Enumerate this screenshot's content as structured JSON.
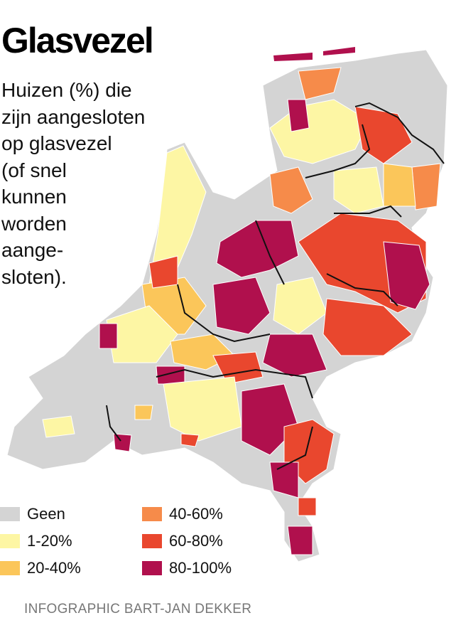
{
  "title": "Glasvezel",
  "subtitle_lines": [
    "Huizen (%) die",
    "zijn aangesloten",
    "op glasvezel",
    "(of snel",
    "kunnen",
    "worden",
    "aange-",
    "sloten)."
  ],
  "legend": [
    {
      "label": "Geen",
      "color": "#d4d4d4"
    },
    {
      "label": "1-20%",
      "color": "#fdf6a4"
    },
    {
      "label": "20-40%",
      "color": "#fbc65a"
    },
    {
      "label": "40-60%",
      "color": "#f68b4a"
    },
    {
      "label": "60-80%",
      "color": "#e9472e"
    },
    {
      "label": "80-100%",
      "color": "#b0104d"
    }
  ],
  "credit": "INFOGRAPHIC BART-JAN DEKKER"
}
